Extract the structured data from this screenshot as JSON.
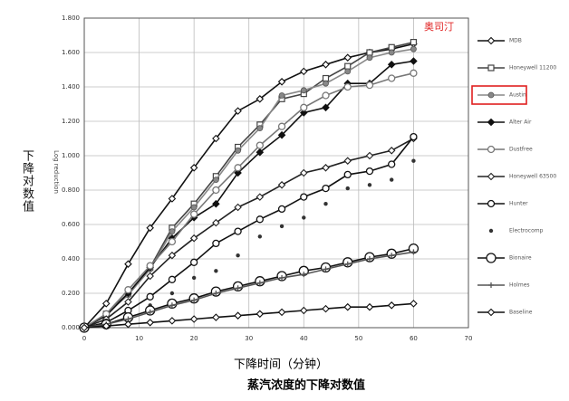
{
  "chart_data": {
    "type": "line",
    "title": "蒸汽浓度的下降对数值",
    "x_label": "下降时间（分钟）",
    "y_label": "Log reduction",
    "y_label_side": "下降对数值",
    "annotation": "奥司汀",
    "annotation_color": "#e02020",
    "highlight_series": 2,
    "grid": true,
    "xlim": [
      0,
      70
    ],
    "xticks": [
      0,
      10,
      20,
      30,
      40,
      50,
      60,
      70
    ],
    "ylim": [
      0,
      1.8
    ],
    "yticks": [
      {
        "value": 0,
        "label": "0.000"
      },
      {
        "value": 0.2,
        "label": "0.200"
      },
      {
        "value": 0.4,
        "label": "0.400"
      },
      {
        "value": 0.6,
        "label": "0.600"
      },
      {
        "value": 0.8,
        "label": "0.800"
      },
      {
        "value": 1.0,
        "label": "1.000"
      },
      {
        "value": 1.2,
        "label": "1.200"
      },
      {
        "value": 1.4,
        "label": "1.400"
      },
      {
        "value": 1.6,
        "label": "1.600"
      },
      {
        "value": 1.8,
        "label": "1.800"
      }
    ],
    "x": [
      0,
      4,
      8,
      12,
      16,
      20,
      24,
      28,
      32,
      36,
      40,
      44,
      48,
      52,
      56,
      60
    ],
    "series": [
      {
        "name": "MDB",
        "color": "#111111",
        "marker": "diamond-open",
        "values": [
          0,
          0.14,
          0.37,
          0.58,
          0.75,
          0.93,
          1.1,
          1.26,
          1.33,
          1.43,
          1.49,
          1.53,
          1.57,
          1.6,
          1.62,
          1.65
        ]
      },
      {
        "name": "Honeywell 11200",
        "color": "#444444",
        "marker": "square",
        "values": [
          0,
          0.08,
          0.2,
          0.35,
          0.58,
          0.72,
          0.88,
          1.05,
          1.18,
          1.33,
          1.36,
          1.45,
          1.52,
          1.6,
          1.63,
          1.66
        ]
      },
      {
        "name": "Austin",
        "color": "#888888",
        "marker": "circle-filled",
        "values": [
          0,
          0.08,
          0.19,
          0.34,
          0.56,
          0.7,
          0.86,
          1.03,
          1.16,
          1.35,
          1.38,
          1.42,
          1.49,
          1.57,
          1.6,
          1.62
        ]
      },
      {
        "name": "Alter Air",
        "color": "#111111",
        "marker": "diamond-filled",
        "values": [
          0,
          0.07,
          0.2,
          0.35,
          0.52,
          0.64,
          0.72,
          0.9,
          1.02,
          1.12,
          1.25,
          1.28,
          1.42,
          1.42,
          1.53,
          1.55
        ]
      },
      {
        "name": "Dustfree",
        "color": "#777777",
        "marker": "circle",
        "values": [
          0,
          0.08,
          0.22,
          0.36,
          0.5,
          0.66,
          0.8,
          0.93,
          1.06,
          1.17,
          1.28,
          1.35,
          1.4,
          1.41,
          1.45,
          1.48
        ]
      },
      {
        "name": "Honeywell 63500",
        "color": "#222222",
        "marker": "diamond-open",
        "values": [
          0,
          0.05,
          0.15,
          0.3,
          0.42,
          0.52,
          0.61,
          0.7,
          0.76,
          0.83,
          0.9,
          0.93,
          0.97,
          1.0,
          1.03,
          1.1
        ]
      },
      {
        "name": "Hunter",
        "color": "#111111",
        "marker": "circle",
        "values": [
          0,
          0.03,
          0.1,
          0.18,
          0.28,
          0.38,
          0.49,
          0.56,
          0.63,
          0.69,
          0.76,
          0.81,
          0.89,
          0.91,
          0.95,
          1.11
        ]
      },
      {
        "name": "Electrocomp",
        "color": "#333333",
        "marker": "dot",
        "line": false,
        "values": [
          0,
          0.02,
          0.07,
          0.13,
          0.2,
          0.29,
          0.33,
          0.42,
          0.53,
          0.59,
          0.64,
          0.72,
          0.81,
          0.83,
          0.86,
          0.97
        ]
      },
      {
        "name": "Bionaire",
        "color": "#111111",
        "marker": "circle-big",
        "values": [
          0,
          0.02,
          0.06,
          0.1,
          0.14,
          0.17,
          0.21,
          0.24,
          0.27,
          0.3,
          0.33,
          0.35,
          0.38,
          0.41,
          0.43,
          0.46
        ]
      },
      {
        "name": "Holmes",
        "color": "#555555",
        "marker": "plus",
        "values": [
          0,
          0.02,
          0.05,
          0.09,
          0.13,
          0.16,
          0.2,
          0.23,
          0.26,
          0.29,
          0.31,
          0.34,
          0.37,
          0.4,
          0.42,
          0.44
        ]
      },
      {
        "name": "Baseline",
        "color": "#111111",
        "marker": "diamond-open",
        "values": [
          0,
          0.01,
          0.02,
          0.03,
          0.04,
          0.05,
          0.06,
          0.07,
          0.08,
          0.09,
          0.1,
          0.11,
          0.12,
          0.12,
          0.13,
          0.14
        ]
      }
    ]
  }
}
